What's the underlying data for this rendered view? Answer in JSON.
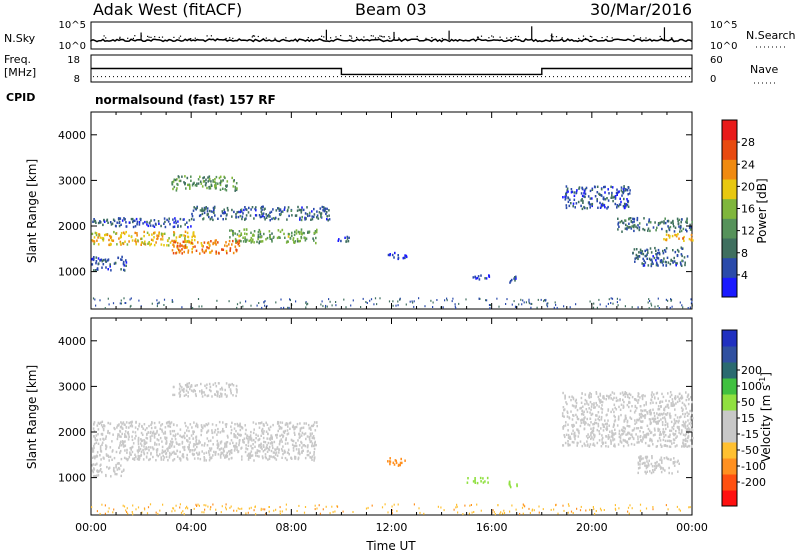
{
  "header": {
    "radar": "Adak West (fitACF)",
    "beam": "Beam 03",
    "date": "30/Mar/2016"
  },
  "noise_panel": {
    "left_label": "N.Sky",
    "right_label": "N.Search",
    "left_ticks": [
      "10^5",
      "10^0"
    ],
    "right_ticks": [
      "10^5",
      "10^0"
    ]
  },
  "freq_panel": {
    "left_label_line1": "Freq.",
    "left_label_line2": "[MHz]",
    "left_ticks": [
      "18",
      "8"
    ],
    "right_ticks": [
      "60",
      "0"
    ],
    "right_label": "Nave",
    "freq_steps": [
      {
        "start": 0,
        "end": 10,
        "freq": 13
      },
      {
        "start": 10,
        "end": 18,
        "freq": 10.8
      },
      {
        "start": 18,
        "end": 24,
        "freq": 13
      }
    ],
    "nave": 12
  },
  "cpid": {
    "label": "CPID",
    "program": "normalsound (fast) 157 RF"
  },
  "colors": {
    "power": [
      "#1a1aff",
      "#2a4aaa",
      "#3f6f5f",
      "#56925a",
      "#7fb63c",
      "#e8c810",
      "#f08a10",
      "#e84a10",
      "#e81a1a"
    ],
    "velocity": [
      "#ff1010",
      "#ff5010",
      "#ff9020",
      "#ffc030",
      "#c8c8c8",
      "#c8c8c8",
      "#90e040",
      "#40c040",
      "#2a6a70",
      "#3050a0",
      "#2030c0"
    ]
  },
  "chart_data": [
    {
      "type": "heatmap",
      "parameter": "Power",
      "xlabel": "",
      "ylabel": "Slant Range [km]",
      "x_unit": "hours UT",
      "xlim": [
        0,
        24
      ],
      "ylim": [
        180,
        4500
      ],
      "y_ticks": [
        1000,
        2000,
        3000,
        4000
      ],
      "colorbar": {
        "label": "Power [dB]",
        "range": [
          0,
          32
        ],
        "ticks": [
          4,
          8,
          12,
          16,
          20,
          24,
          28
        ]
      },
      "regions": [
        {
          "t0": 0.0,
          "t1": 4.2,
          "r0": 1600,
          "r1": 1900,
          "level": 20
        },
        {
          "t0": 3.2,
          "t1": 6.0,
          "r0": 1420,
          "r1": 1720,
          "level": 24
        },
        {
          "t0": 5.5,
          "t1": 9.0,
          "r0": 1650,
          "r1": 1950,
          "level": 14
        },
        {
          "t0": 0.0,
          "t1": 4.0,
          "r0": 2000,
          "r1": 2200,
          "level": 6
        },
        {
          "t0": 4.0,
          "t1": 9.5,
          "r0": 2150,
          "r1": 2450,
          "level": 7
        },
        {
          "t0": 3.2,
          "t1": 5.8,
          "r0": 2800,
          "r1": 3120,
          "level": 12
        },
        {
          "t0": 0.0,
          "t1": 1.4,
          "r0": 1050,
          "r1": 1350,
          "level": 6
        },
        {
          "t0": 9.8,
          "t1": 10.3,
          "r0": 1650,
          "r1": 1800,
          "level": 6
        },
        {
          "t0": 11.8,
          "t1": 12.6,
          "r0": 1300,
          "r1": 1450,
          "level": 4
        },
        {
          "t0": 15.2,
          "t1": 15.9,
          "r0": 850,
          "r1": 1000,
          "level": 4
        },
        {
          "t0": 16.6,
          "t1": 17.0,
          "r0": 780,
          "r1": 920,
          "level": 5
        },
        {
          "t0": 18.8,
          "t1": 21.5,
          "r0": 2400,
          "r1": 2900,
          "level": 6
        },
        {
          "t0": 21.0,
          "t1": 24.0,
          "r0": 1900,
          "r1": 2200,
          "level": 9
        },
        {
          "t0": 22.8,
          "t1": 24.0,
          "r0": 1700,
          "r1": 1850,
          "level": 22
        },
        {
          "t0": 21.6,
          "t1": 23.8,
          "r0": 1150,
          "r1": 1550,
          "level": 7
        }
      ]
    },
    {
      "type": "heatmap",
      "parameter": "Velocity",
      "xlabel": "Time UT",
      "ylabel": "Slant Range [km]",
      "x_unit": "hours UT",
      "xlim": [
        0,
        24
      ],
      "ylim": [
        180,
        4500
      ],
      "x_ticks": [
        "00:00",
        "04:00",
        "08:00",
        "12:00",
        "16:00",
        "20:00",
        "00:00"
      ],
      "y_ticks": [
        1000,
        2000,
        3000,
        4000
      ],
      "colorbar": {
        "label_main": "Velocity",
        "label_unit": "[m s",
        "label_exp": "-1",
        "label_close": "]",
        "ticks": [
          "-200",
          "-100",
          "-50",
          "-15",
          "15",
          "50",
          "100",
          "200"
        ]
      },
      "regions": [
        {
          "t0": 0.0,
          "t1": 9.0,
          "r0": 1400,
          "r1": 2250,
          "level": 0
        },
        {
          "t0": 3.2,
          "t1": 5.8,
          "r0": 2800,
          "r1": 3100,
          "level": 0
        },
        {
          "t0": 0.0,
          "t1": 1.3,
          "r0": 1050,
          "r1": 1350,
          "level": 0
        },
        {
          "t0": 11.8,
          "t1": 12.6,
          "r0": 1280,
          "r1": 1450,
          "level": -80
        },
        {
          "t0": 15.0,
          "t1": 15.9,
          "r0": 900,
          "r1": 1020,
          "level": 30
        },
        {
          "t0": 16.6,
          "t1": 17.0,
          "r0": 800,
          "r1": 950,
          "level": 30
        },
        {
          "t0": 18.8,
          "t1": 24.0,
          "r0": 1700,
          "r1": 2900,
          "level": 0
        },
        {
          "t0": 21.8,
          "t1": 23.5,
          "r0": 1100,
          "r1": 1500,
          "level": 0
        }
      ]
    }
  ]
}
